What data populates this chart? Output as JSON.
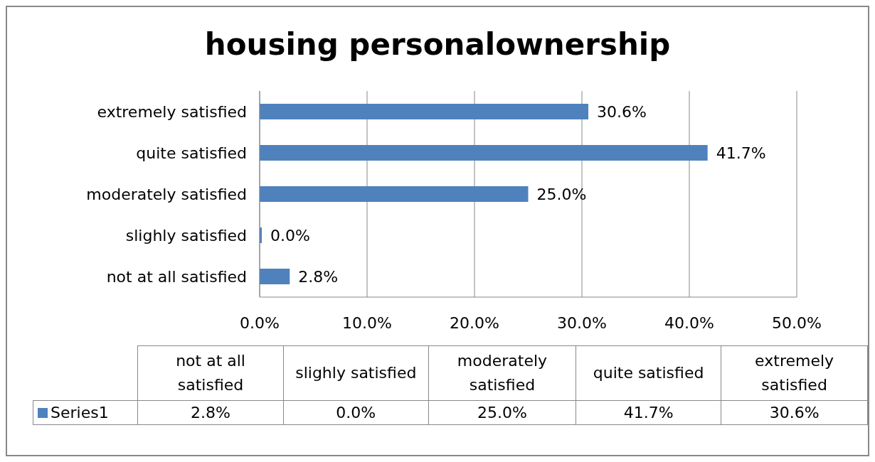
{
  "chart_data": {
    "type": "bar",
    "orientation": "horizontal",
    "title": "housing personalownership",
    "categories": [
      "extremely satisfied",
      "quite satisfied",
      "moderately satisfied",
      "slighly satisfied",
      "not at all satisfied"
    ],
    "series": [
      {
        "name": "Series1",
        "color": "#4f81bd",
        "values": [
          30.6,
          41.7,
          25.0,
          0.0,
          2.8
        ],
        "value_labels": [
          "30.6%",
          "41.7%",
          "25.0%",
          "0.0%",
          "2.8%"
        ]
      }
    ],
    "xlim": [
      0,
      50
    ],
    "xticks": [
      {
        "value": 0,
        "label": "0.0%"
      },
      {
        "value": 10,
        "label": "10.0%"
      },
      {
        "value": 20,
        "label": "20.0%"
      },
      {
        "value": 30,
        "label": "30.0%"
      },
      {
        "value": 40,
        "label": "40.0%"
      },
      {
        "value": 50,
        "label": "50.0%"
      }
    ],
    "grid": "x",
    "legend": "bottom"
  }
}
